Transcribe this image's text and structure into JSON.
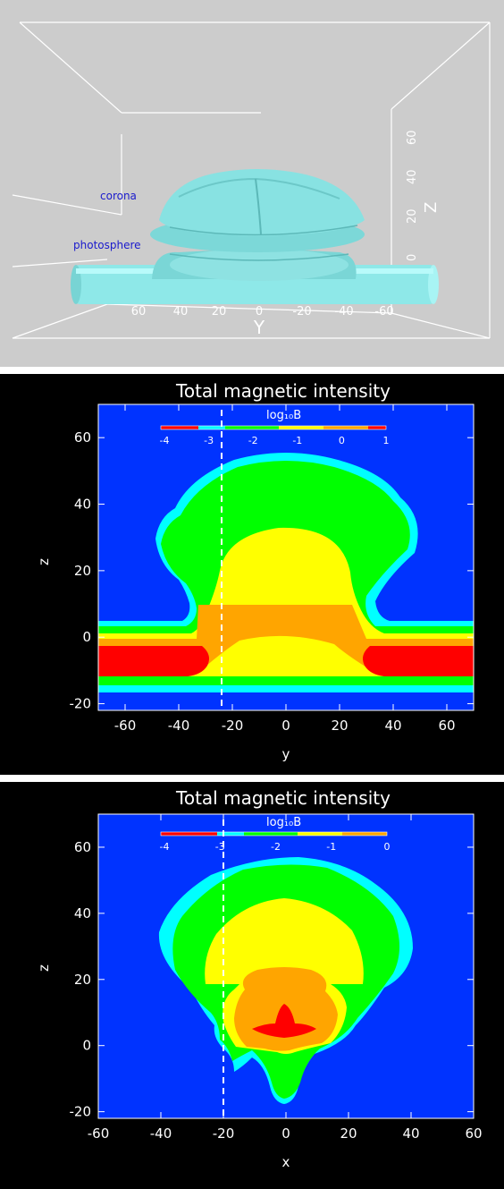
{
  "render3d": {
    "labels": {
      "corona": "corona",
      "photosphere": "photosphere",
      "y_axis": "Y",
      "z_axis": "Z"
    },
    "y_ticks": [
      "60",
      "40",
      "20",
      "0",
      "-20",
      "-40",
      "-60"
    ],
    "z_ticks": [
      "0",
      "20",
      "40",
      "60"
    ],
    "colors": {
      "background": "#cccccc",
      "surface": "#8ee8e8",
      "label": "#1a1acc",
      "frame": "#ffffff"
    }
  },
  "chart_data": [
    {
      "type": "heatmap",
      "title": "Total magnetic intensity",
      "colorbar_label": "log₁₀B",
      "colorbar_ticks": [
        "-4",
        "-3",
        "-2",
        "-1",
        "0",
        "1"
      ],
      "xlabel": "y",
      "ylabel": "z",
      "xlim": [
        -70,
        70
      ],
      "ylim": [
        -22,
        70
      ],
      "x_ticks": [
        "-60",
        "-40",
        "-20",
        "0",
        "20",
        "40",
        "60"
      ],
      "y_ticks": [
        "-20",
        "0",
        "20",
        "40",
        "60"
      ],
      "dashed_line_x": -24,
      "levels": [
        {
          "range": "< -3",
          "color": "#0033ff"
        },
        {
          "range": "-3 to -2.5",
          "color": "#00ffff"
        },
        {
          "range": "-2.5 to -1.5",
          "color": "#00ff00"
        },
        {
          "range": "-1.5 to -0.5",
          "color": "#ffff00"
        },
        {
          "range": "-0.5 to 0.5",
          "color": "#ffa500"
        },
        {
          "range": "> 0.5",
          "color": "#ff0000"
        }
      ]
    },
    {
      "type": "heatmap",
      "title": "Total magnetic intensity",
      "colorbar_label": "log₁₀B",
      "colorbar_ticks": [
        "-4",
        "-3",
        "-2",
        "-1",
        "0"
      ],
      "xlabel": "x",
      "ylabel": "z",
      "xlim": [
        -60,
        60
      ],
      "ylim": [
        -22,
        70
      ],
      "x_ticks": [
        "-60",
        "-40",
        "-20",
        "0",
        "20",
        "40",
        "60"
      ],
      "y_ticks": [
        "-20",
        "0",
        "20",
        "40",
        "60"
      ],
      "dashed_line_x": -20,
      "levels": [
        {
          "range": "< -3",
          "color": "#0033ff"
        },
        {
          "range": "-3 to -2.5",
          "color": "#00ffff"
        },
        {
          "range": "-2.5 to -1.5",
          "color": "#00ff00"
        },
        {
          "range": "-1.5 to -1",
          "color": "#ffff00"
        },
        {
          "range": "-1 to -0.3",
          "color": "#ffa500"
        },
        {
          "range": "> -0.3",
          "color": "#ff0000"
        }
      ]
    }
  ]
}
